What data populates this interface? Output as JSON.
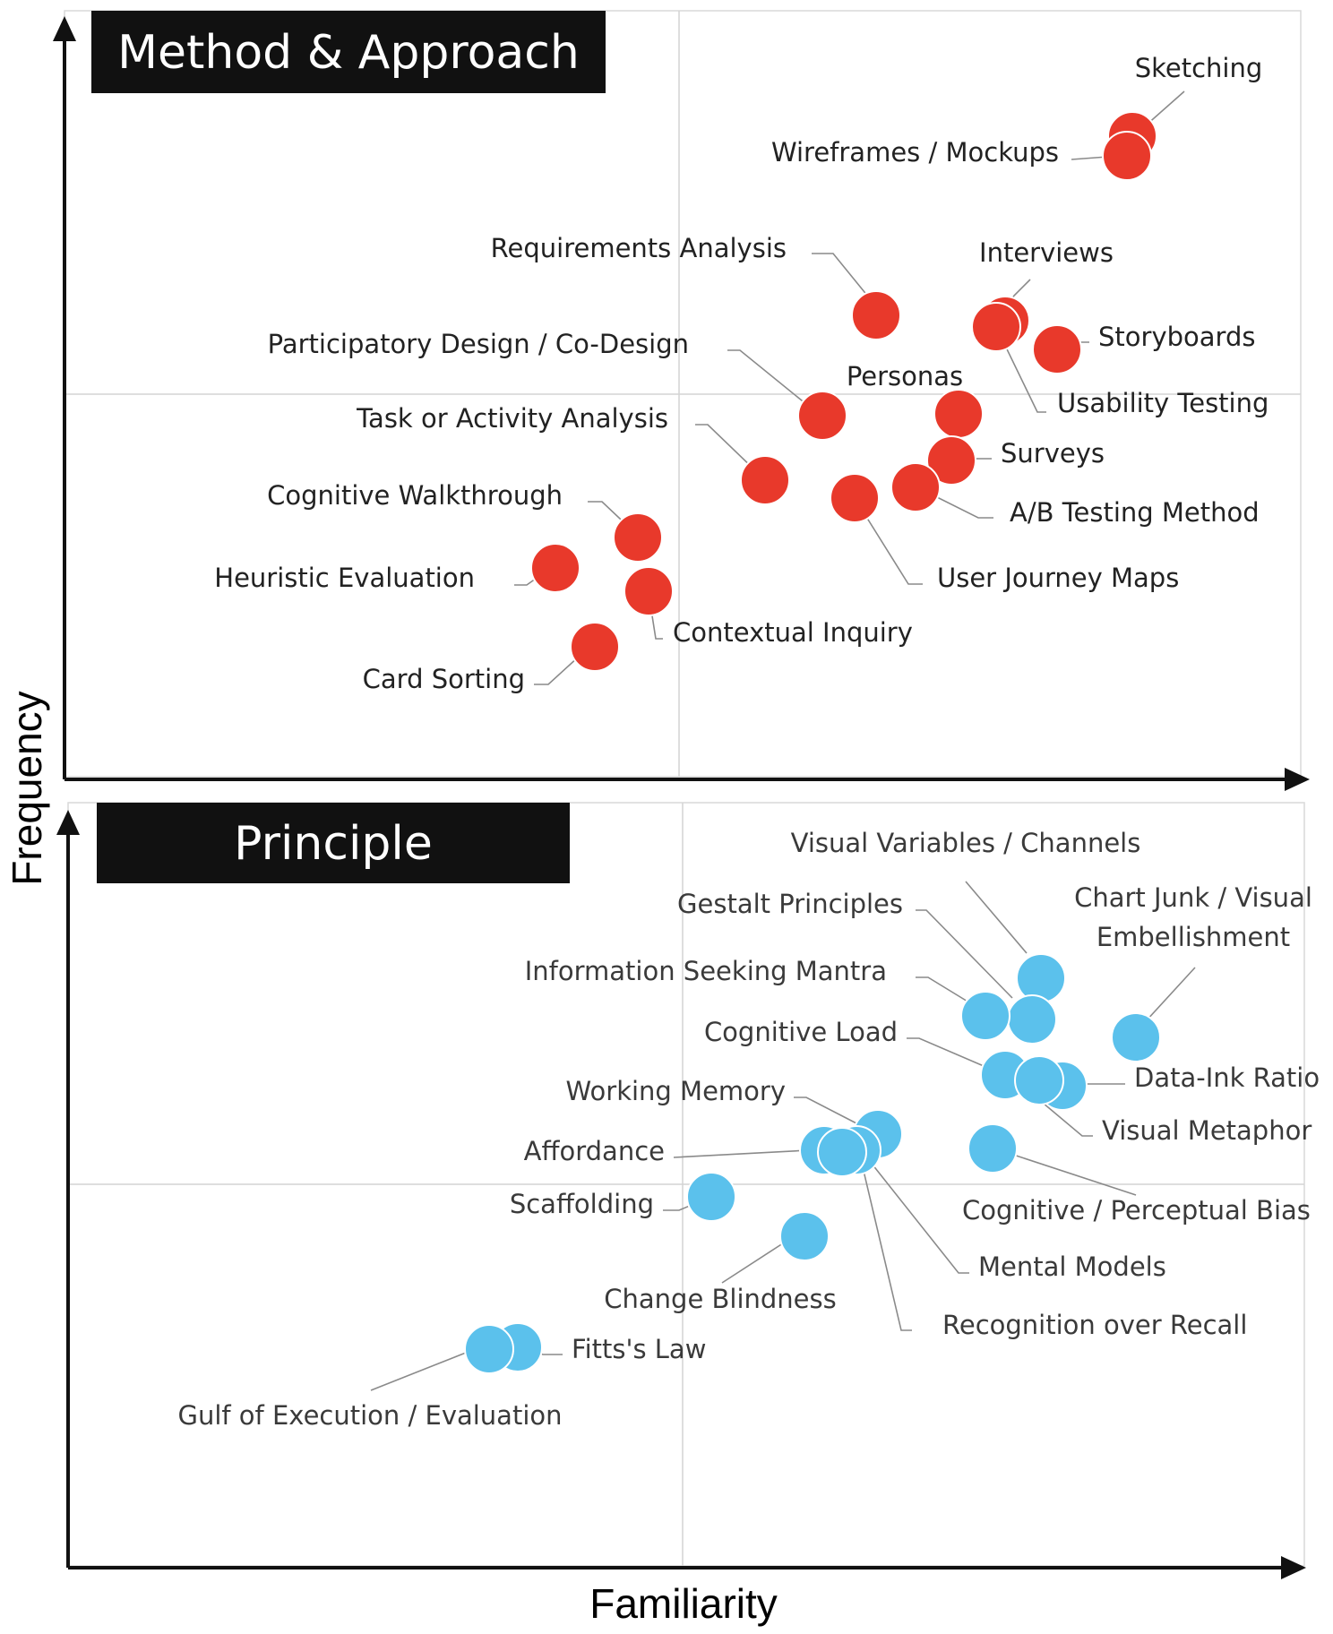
{
  "axes": {
    "x_label": "Familiarity",
    "y_label": "Frequency"
  },
  "colors": {
    "methods": "#E8392B",
    "principles": "#5BC1EC",
    "axis": "#111111",
    "grid": "#d4d4d4",
    "leader": "#8a8a8a",
    "title_bg": "#111111",
    "title_fg": "#ffffff",
    "label": "#222222",
    "label_principle": "#3a3a3a"
  },
  "chart_data": [
    {
      "type": "scatter",
      "title": "Method & Approach",
      "xlabel": "Familiarity",
      "ylabel": "Frequency",
      "xlim": [
        0,
        1
      ],
      "ylim": [
        0,
        1
      ],
      "grid": true,
      "points": [
        {
          "label": "Sketching",
          "x": 0.86,
          "y": 0.83
        },
        {
          "label": "Wireframes / Mockups",
          "x": 0.86,
          "y": 0.81
        },
        {
          "label": "Requirements Analysis",
          "x": 0.66,
          "y": 0.6
        },
        {
          "label": "Interviews",
          "x": 0.76,
          "y": 0.59
        },
        {
          "label": "Usability Testing",
          "x": 0.75,
          "y": 0.58
        },
        {
          "label": "Storyboards",
          "x": 0.8,
          "y": 0.56
        },
        {
          "label": "Participatory Design / Co-Design",
          "x": 0.62,
          "y": 0.48
        },
        {
          "label": "Personas",
          "x": 0.73,
          "y": 0.48
        },
        {
          "label": "Surveys",
          "x": 0.72,
          "y": 0.42
        },
        {
          "label": "Task or Activity Analysis",
          "x": 0.57,
          "y": 0.39
        },
        {
          "label": "A/B Testing Method",
          "x": 0.69,
          "y": 0.37
        },
        {
          "label": "User Journey Maps",
          "x": 0.64,
          "y": 0.36
        },
        {
          "label": "Cognitive Walkthrough",
          "x": 0.47,
          "y": 0.31
        },
        {
          "label": "Heuristic Evaluation",
          "x": 0.4,
          "y": 0.27
        },
        {
          "label": "Contextual Inquiry",
          "x": 0.48,
          "y": 0.24
        },
        {
          "label": "Card Sorting",
          "x": 0.43,
          "y": 0.17
        }
      ]
    },
    {
      "type": "scatter",
      "title": "Principle",
      "xlabel": "Familiarity",
      "ylabel": "Frequency",
      "xlim": [
        0,
        1
      ],
      "ylim": [
        0,
        1
      ],
      "grid": true,
      "points": [
        {
          "label": "Visual Variables / Channels",
          "x": 0.79,
          "y": 0.77
        },
        {
          "label": "Gestalt Principles",
          "x": 0.78,
          "y": 0.71
        },
        {
          "label": "Information Seeking Mantra",
          "x": 0.74,
          "y": 0.72
        },
        {
          "label": "Chart Junk / Visual Embellishment",
          "x": 0.87,
          "y": 0.69
        },
        {
          "label": "Cognitive Load",
          "x": 0.76,
          "y": 0.64
        },
        {
          "label": "Data-Ink Ratio",
          "x": 0.81,
          "y": 0.63
        },
        {
          "label": "Visual Metaphor",
          "x": 0.79,
          "y": 0.63
        },
        {
          "label": "Working Memory",
          "x": 0.66,
          "y": 0.55
        },
        {
          "label": "Affordance",
          "x": 0.62,
          "y": 0.54
        },
        {
          "label": "Mental Models",
          "x": 0.64,
          "y": 0.54
        },
        {
          "label": "Recognition over Recall",
          "x": 0.65,
          "y": 0.54
        },
        {
          "label": "Cognitive / Perceptual Bias",
          "x": 0.75,
          "y": 0.54
        },
        {
          "label": "Scaffolding",
          "x": 0.52,
          "y": 0.48
        },
        {
          "label": "Change Blindness",
          "x": 0.6,
          "y": 0.43
        },
        {
          "label": "Fitts's Law",
          "x": 0.36,
          "y": 0.28
        },
        {
          "label": "Gulf of Execution / Evaluation",
          "x": 0.34,
          "y": 0.28
        }
      ]
    }
  ]
}
